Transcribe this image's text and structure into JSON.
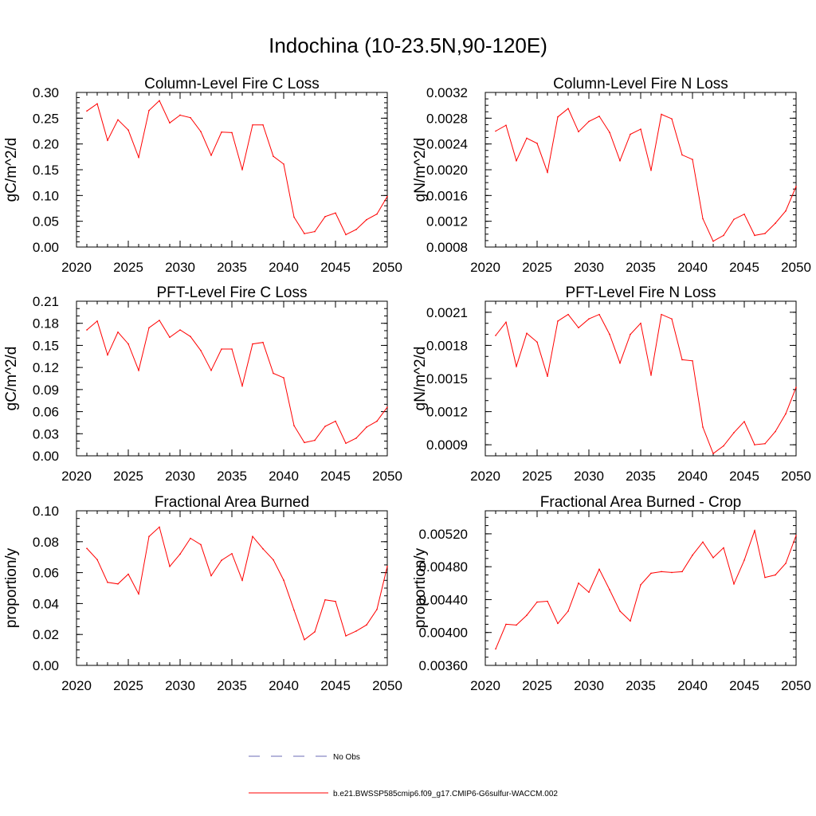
{
  "figure": {
    "title": "Indochina (10-23.5N,90-120E)"
  },
  "legend": {
    "obs_label": "No Obs",
    "obs_color": "#6b6bb5",
    "model_label": "b.e21.BWSSP585cmip6.f09_g17.CMIP6-G6sulfur-WACCM.002",
    "model_color": "#ff0000"
  },
  "chart_data": [
    {
      "type": "line",
      "title": "Column-Level Fire C Loss",
      "ylabel": "gC/m^2/d",
      "xlim": [
        2020,
        2050
      ],
      "ylim": [
        0,
        0.3
      ],
      "xticks": [
        2020,
        2025,
        2030,
        2035,
        2040,
        2045,
        2050
      ],
      "xtick_labels": [
        "2020",
        "2025",
        "2030",
        "2035",
        "2040",
        "2045",
        "2050"
      ],
      "yticks": [
        0,
        0.05,
        0.1,
        0.15,
        0.2,
        0.25,
        0.3
      ],
      "ytick_labels": [
        "0.00",
        "0.05",
        "0.10",
        "0.15",
        "0.20",
        "0.25",
        "0.30"
      ],
      "yminor": 0.01,
      "x": [
        2021,
        2022,
        2023,
        2024,
        2025,
        2026,
        2027,
        2028,
        2029,
        2030,
        2031,
        2032,
        2033,
        2034,
        2035,
        2036,
        2037,
        2038,
        2039,
        2040,
        2041,
        2042,
        2043,
        2044,
        2045,
        2046,
        2047,
        2048,
        2049,
        2050
      ],
      "series": [
        {
          "values": [
            0.264,
            0.278,
            0.207,
            0.247,
            0.227,
            0.174,
            0.265,
            0.284,
            0.241,
            0.256,
            0.251,
            0.224,
            0.178,
            0.223,
            0.222,
            0.15,
            0.237,
            0.237,
            0.176,
            0.161,
            0.058,
            0.026,
            0.03,
            0.059,
            0.066,
            0.024,
            0.034,
            0.053,
            0.064,
            0.098
          ],
          "color": "#ff0000"
        }
      ]
    },
    {
      "type": "line",
      "title": "Column-Level Fire N Loss",
      "ylabel": "gN/m^2/d",
      "xlim": [
        2020,
        2050
      ],
      "ylim": [
        0.0008,
        0.0032
      ],
      "xticks": [
        2020,
        2025,
        2030,
        2035,
        2040,
        2045,
        2050
      ],
      "xtick_labels": [
        "2020",
        "2025",
        "2030",
        "2035",
        "2040",
        "2045",
        "2050"
      ],
      "yticks": [
        0.0008,
        0.0012,
        0.0016,
        0.002,
        0.0024,
        0.0028,
        0.0032
      ],
      "ytick_labels": [
        "0.0008",
        "0.0012",
        "0.0016",
        "0.0020",
        "0.0024",
        "0.0028",
        "0.0032"
      ],
      "yminor": 0.0001,
      "x": [
        2021,
        2022,
        2023,
        2024,
        2025,
        2026,
        2027,
        2028,
        2029,
        2030,
        2031,
        2032,
        2033,
        2034,
        2035,
        2036,
        2037,
        2038,
        2039,
        2040,
        2041,
        2042,
        2043,
        2044,
        2045,
        2046,
        2047,
        2048,
        2049,
        2050
      ],
      "series": [
        {
          "values": [
            0.0026,
            0.00269,
            0.00214,
            0.00249,
            0.00241,
            0.00196,
            0.00282,
            0.00295,
            0.00259,
            0.00275,
            0.00283,
            0.00258,
            0.00214,
            0.00255,
            0.00263,
            0.00199,
            0.00286,
            0.00279,
            0.00223,
            0.00216,
            0.00124,
            0.00089,
            0.00098,
            0.00123,
            0.00131,
            0.00098,
            0.00101,
            0.00117,
            0.00136,
            0.00174
          ],
          "color": "#ff0000"
        }
      ]
    },
    {
      "type": "line",
      "title": "PFT-Level Fire C Loss",
      "ylabel": "gC/m^2/d",
      "xlim": [
        2020,
        2050
      ],
      "ylim": [
        0,
        0.21
      ],
      "xticks": [
        2020,
        2025,
        2030,
        2035,
        2040,
        2045,
        2050
      ],
      "xtick_labels": [
        "2020",
        "2025",
        "2030",
        "2035",
        "2040",
        "2045",
        "2050"
      ],
      "yticks": [
        0,
        0.03,
        0.06,
        0.09,
        0.12,
        0.15,
        0.18,
        0.21
      ],
      "ytick_labels": [
        "0.00",
        "0.03",
        "0.06",
        "0.09",
        "0.12",
        "0.15",
        "0.18",
        "0.21"
      ],
      "yminor": 0.01,
      "x": [
        2021,
        2022,
        2023,
        2024,
        2025,
        2026,
        2027,
        2028,
        2029,
        2030,
        2031,
        2032,
        2033,
        2034,
        2035,
        2036,
        2037,
        2038,
        2039,
        2040,
        2041,
        2042,
        2043,
        2044,
        2045,
        2046,
        2047,
        2048,
        2049,
        2050
      ],
      "series": [
        {
          "values": [
            0.171,
            0.183,
            0.137,
            0.168,
            0.152,
            0.116,
            0.174,
            0.184,
            0.161,
            0.171,
            0.162,
            0.143,
            0.116,
            0.145,
            0.145,
            0.095,
            0.152,
            0.154,
            0.112,
            0.106,
            0.041,
            0.018,
            0.021,
            0.04,
            0.047,
            0.017,
            0.024,
            0.039,
            0.047,
            0.066
          ],
          "color": "#ff0000"
        }
      ]
    },
    {
      "type": "line",
      "title": "PFT-Level Fire N Loss",
      "ylabel": "gN/m^2/d",
      "xlim": [
        2020,
        2050
      ],
      "ylim": [
        0.0008,
        0.0022
      ],
      "xticks": [
        2020,
        2025,
        2030,
        2035,
        2040,
        2045,
        2050
      ],
      "xtick_labels": [
        "2020",
        "2025",
        "2030",
        "2035",
        "2040",
        "2045",
        "2050"
      ],
      "yticks": [
        0.0009,
        0.0012,
        0.0015,
        0.0018,
        0.0021
      ],
      "ytick_labels": [
        "0.0009",
        "0.0012",
        "0.0015",
        "0.0018",
        "0.0021"
      ],
      "yminor": 0.0001,
      "x": [
        2021,
        2022,
        2023,
        2024,
        2025,
        2026,
        2027,
        2028,
        2029,
        2030,
        2031,
        2032,
        2033,
        2034,
        2035,
        2036,
        2037,
        2038,
        2039,
        2040,
        2041,
        2042,
        2043,
        2044,
        2045,
        2046,
        2047,
        2048,
        2049,
        2050
      ],
      "series": [
        {
          "values": [
            0.00189,
            0.00201,
            0.00161,
            0.00191,
            0.00183,
            0.00152,
            0.00202,
            0.00208,
            0.00196,
            0.00204,
            0.00208,
            0.0019,
            0.00164,
            0.0019,
            0.002,
            0.00153,
            0.00208,
            0.00204,
            0.00167,
            0.00166,
            0.00106,
            0.00082,
            0.00089,
            0.00101,
            0.00111,
            0.0009,
            0.00091,
            0.00102,
            0.00118,
            0.00142
          ],
          "color": "#ff0000"
        }
      ]
    },
    {
      "type": "line",
      "title": "Fractional Area Burned",
      "ylabel": "proportion/y",
      "xlim": [
        2020,
        2050
      ],
      "ylim": [
        0,
        0.1
      ],
      "xticks": [
        2020,
        2025,
        2030,
        2035,
        2040,
        2045,
        2050
      ],
      "xtick_labels": [
        "2020",
        "2025",
        "2030",
        "2035",
        "2040",
        "2045",
        "2050"
      ],
      "yticks": [
        0,
        0.02,
        0.04,
        0.06,
        0.08,
        0.1
      ],
      "ytick_labels": [
        "0.00",
        "0.02",
        "0.04",
        "0.06",
        "0.08",
        "0.10"
      ],
      "yminor": 0.005,
      "x": [
        2021,
        2022,
        2023,
        2024,
        2025,
        2026,
        2027,
        2028,
        2029,
        2030,
        2031,
        2032,
        2033,
        2034,
        2035,
        2036,
        2037,
        2038,
        2039,
        2040,
        2041,
        2042,
        2043,
        2044,
        2045,
        2046,
        2047,
        2048,
        2049,
        2050
      ],
      "series": [
        {
          "values": [
            0.0757,
            0.0684,
            0.0537,
            0.0527,
            0.059,
            0.0462,
            0.0834,
            0.0895,
            0.064,
            0.072,
            0.0822,
            0.0781,
            0.058,
            0.068,
            0.0723,
            0.055,
            0.0834,
            0.0754,
            0.0683,
            0.0551,
            0.0357,
            0.0166,
            0.0217,
            0.0424,
            0.0414,
            0.0191,
            0.0222,
            0.0262,
            0.0362,
            0.064
          ],
          "color": "#ff0000"
        }
      ]
    },
    {
      "type": "line",
      "title": "Fractional Area Burned - Crop",
      "ylabel": "proportion/y",
      "xlim": [
        2020,
        2050
      ],
      "ylim": [
        0.0036,
        0.00548
      ],
      "xticks": [
        2020,
        2025,
        2030,
        2035,
        2040,
        2045,
        2050
      ],
      "xtick_labels": [
        "2020",
        "2025",
        "2030",
        "2035",
        "2040",
        "2045",
        "2050"
      ],
      "yticks": [
        0.0036,
        0.004,
        0.0044,
        0.0048,
        0.0052
      ],
      "ytick_labels": [
        "0.00360",
        "0.00400",
        "0.00440",
        "0.00480",
        "0.00520"
      ],
      "yminor": 0.0001,
      "x": [
        2021,
        2022,
        2023,
        2024,
        2025,
        2026,
        2027,
        2028,
        2029,
        2030,
        2031,
        2032,
        2033,
        2034,
        2035,
        2036,
        2037,
        2038,
        2039,
        2040,
        2041,
        2042,
        2043,
        2044,
        2045,
        2046,
        2047,
        2048,
        2049,
        2050
      ],
      "series": [
        {
          "values": [
            0.0038,
            0.0041,
            0.00409,
            0.00421,
            0.00437,
            0.00438,
            0.00411,
            0.00426,
            0.0046,
            0.00449,
            0.00477,
            0.00452,
            0.00426,
            0.00414,
            0.00458,
            0.00472,
            0.00474,
            0.00473,
            0.00474,
            0.00494,
            0.0051,
            0.00491,
            0.00503,
            0.00459,
            0.00488,
            0.00524,
            0.00467,
            0.0047,
            0.00484,
            0.00518
          ],
          "color": "#ff0000"
        }
      ]
    }
  ]
}
